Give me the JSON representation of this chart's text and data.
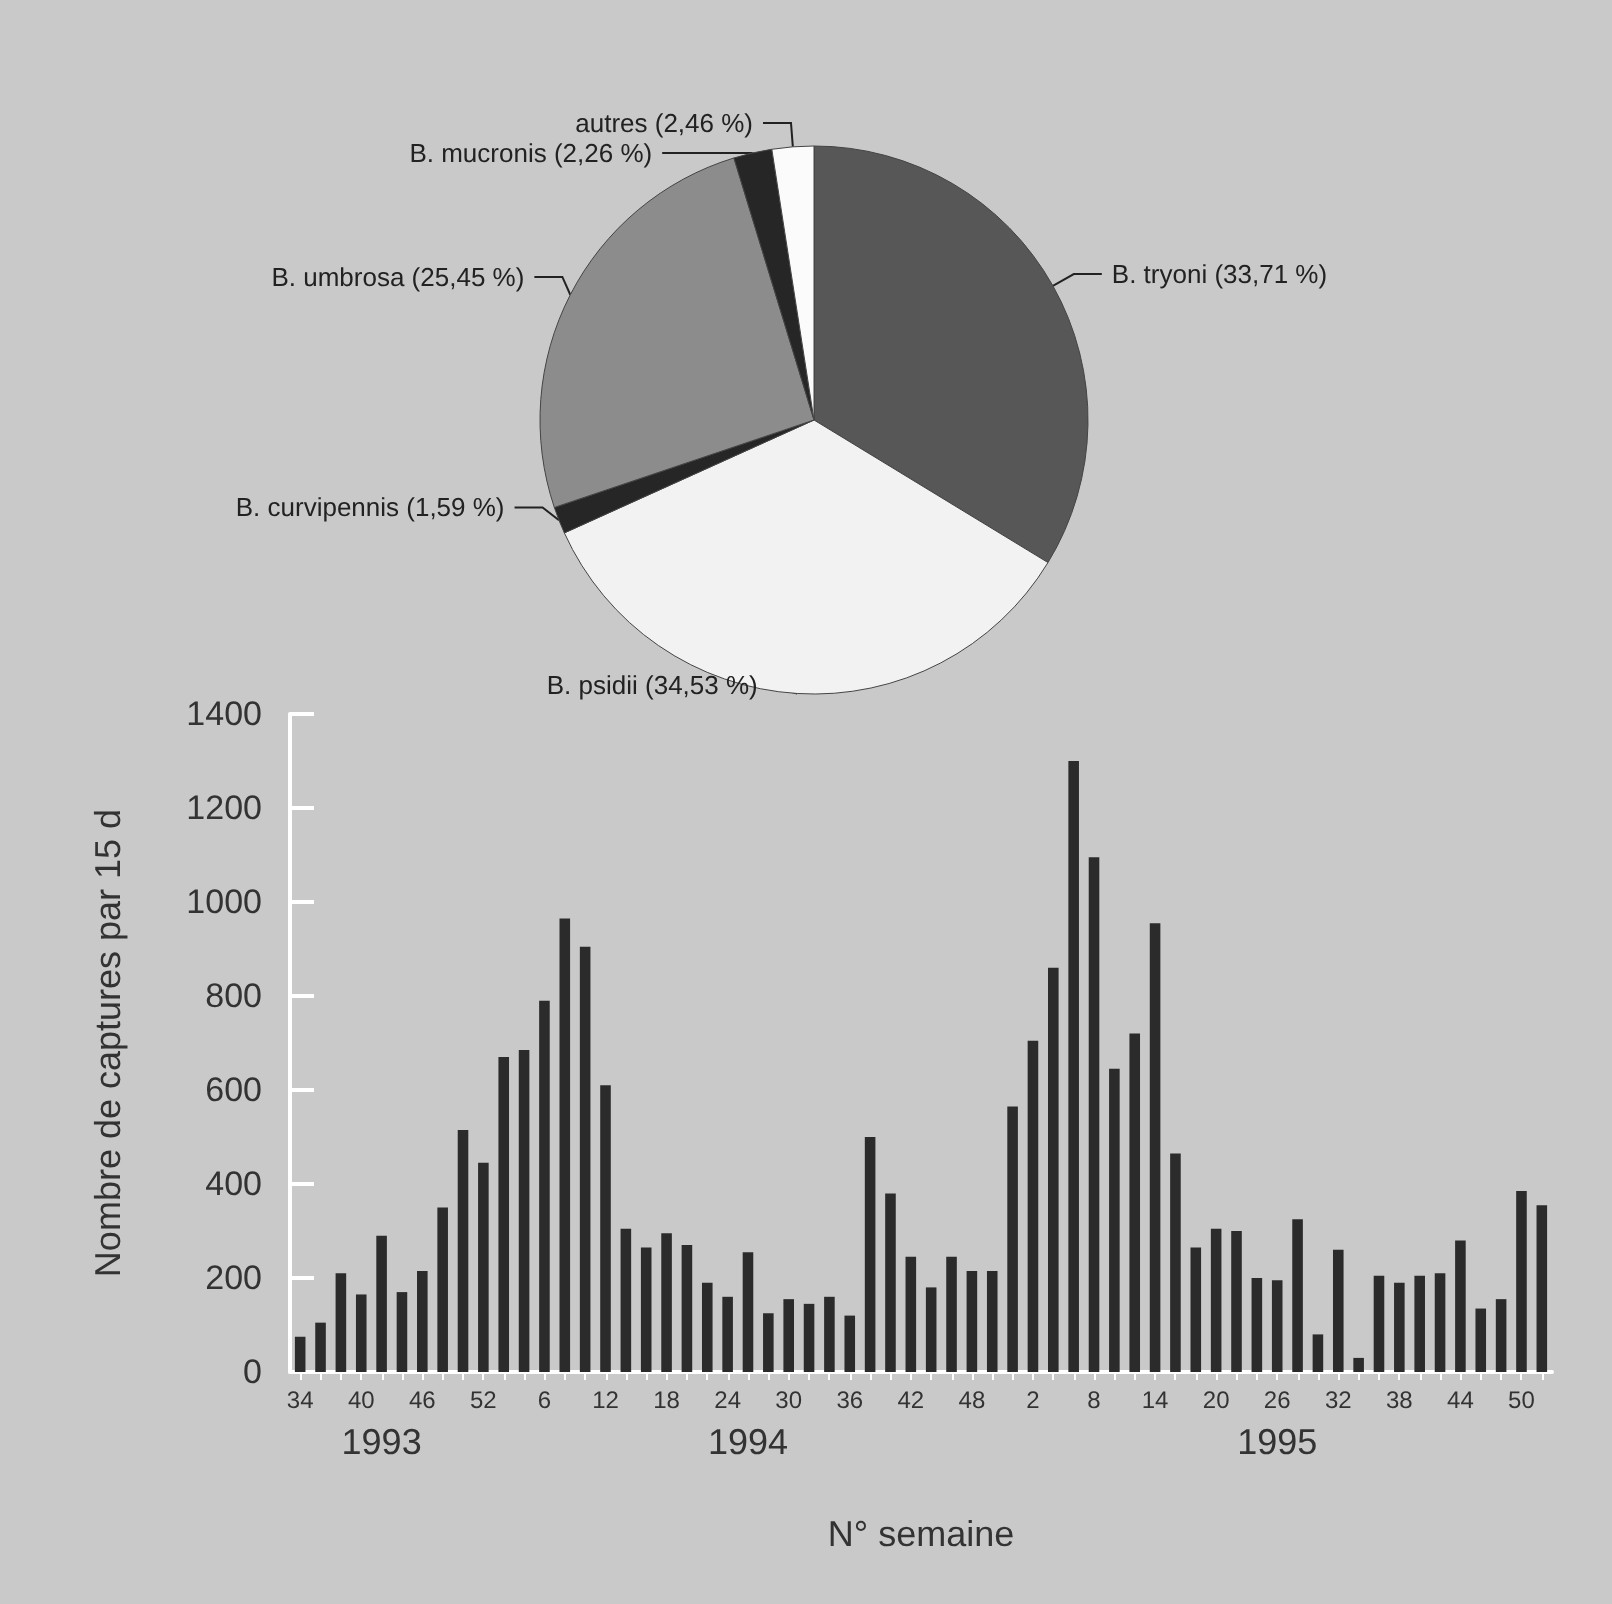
{
  "chart_data": [
    {
      "type": "pie",
      "categories": [
        "B. tryoni",
        "B. psidii",
        "B. curvipennis",
        "B. umbrosa",
        "B. mucronis",
        "autres"
      ],
      "values": [
        33.71,
        34.53,
        1.59,
        25.45,
        2.26,
        2.46
      ],
      "colors": [
        "#575757",
        "#f2f2f2",
        "#262626",
        "#8c8c8c",
        "#262626",
        "#fbfbfb"
      ],
      "value_labels": [
        "(33,71 %)",
        "(34,53 %)",
        "(1,59 %)",
        "(25,45 %)",
        "(2,26 %)",
        "(2,46 %)"
      ],
      "legend": false
    },
    {
      "type": "bar",
      "xlabel": "N° semaine",
      "ylabel": "Nombre de captures par 15 d",
      "color": "#2b2b2b",
      "ylim": [
        0,
        1400
      ],
      "yticks": [
        0,
        200,
        400,
        600,
        800,
        1000,
        1200,
        1400
      ],
      "grid": false,
      "legend": false,
      "categories": [
        "34",
        null,
        null,
        "40",
        null,
        null,
        "46",
        null,
        null,
        "52",
        null,
        null,
        "6",
        null,
        null,
        "12",
        null,
        null,
        "18",
        null,
        null,
        "24",
        null,
        null,
        "30",
        null,
        null,
        "36",
        null,
        null,
        "42",
        null,
        null,
        "48",
        null,
        null,
        "2",
        null,
        null,
        "8",
        null,
        null,
        "14",
        null,
        null,
        "20",
        null,
        null,
        "26",
        null,
        null,
        "32",
        null,
        null,
        "38",
        null,
        null,
        "44",
        null,
        null,
        "50",
        null
      ],
      "values": [
        75,
        105,
        210,
        165,
        290,
        170,
        215,
        350,
        515,
        445,
        670,
        685,
        790,
        965,
        905,
        610,
        305,
        265,
        295,
        270,
        190,
        160,
        255,
        125,
        155,
        145,
        160,
        120,
        500,
        380,
        245,
        180,
        245,
        215,
        215,
        565,
        705,
        860,
        1300,
        1095,
        645,
        720,
        955,
        465,
        265,
        305,
        300,
        200,
        195,
        325,
        80,
        260,
        30,
        205,
        190,
        205,
        210,
        280,
        135,
        155,
        385,
        355
      ],
      "annotations": [
        "1993",
        "1994",
        "1995"
      ]
    }
  ]
}
